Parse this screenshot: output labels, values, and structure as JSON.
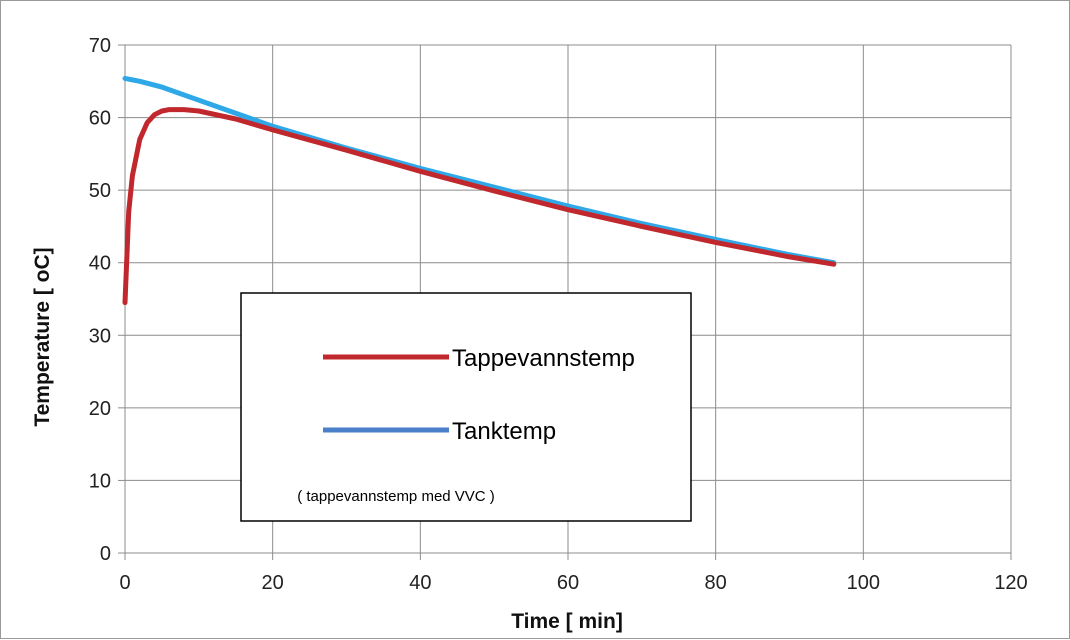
{
  "chart_data": {
    "type": "line",
    "title": "",
    "xlabel": "Time [ min]",
    "ylabel": "Temperature  [ oC]",
    "xlim": [
      0,
      120
    ],
    "ylim": [
      0,
      70
    ],
    "xticks": [
      0,
      20,
      40,
      60,
      80,
      100,
      120
    ],
    "yticks": [
      0,
      10,
      20,
      30,
      40,
      50,
      60,
      70
    ],
    "grid": true,
    "legend_position": "center-left",
    "legend_note": "( tappevannstemp med VVC )",
    "series": [
      {
        "name": "Tappevannstemp",
        "color": "#c0282d",
        "x": [
          0,
          0.5,
          1,
          2,
          3,
          4,
          5,
          6,
          8,
          10,
          15,
          20,
          30,
          40,
          50,
          60,
          70,
          80,
          90,
          96
        ],
        "y": [
          34.5,
          47,
          52,
          57,
          59.3,
          60.4,
          60.9,
          61.1,
          61.1,
          60.9,
          59.8,
          58.3,
          55.5,
          52.6,
          49.9,
          47.3,
          45,
          42.8,
          40.8,
          39.8
        ]
      },
      {
        "name": "Tanktemp",
        "color": "#2fa8e8",
        "x": [
          0,
          2,
          5,
          10,
          20,
          30,
          40,
          50,
          60,
          70,
          80,
          90,
          96
        ],
        "y": [
          65.4,
          65,
          64.2,
          62.4,
          58.8,
          55.8,
          53,
          50.4,
          47.8,
          45.4,
          43.2,
          41.1,
          40
        ]
      }
    ]
  }
}
